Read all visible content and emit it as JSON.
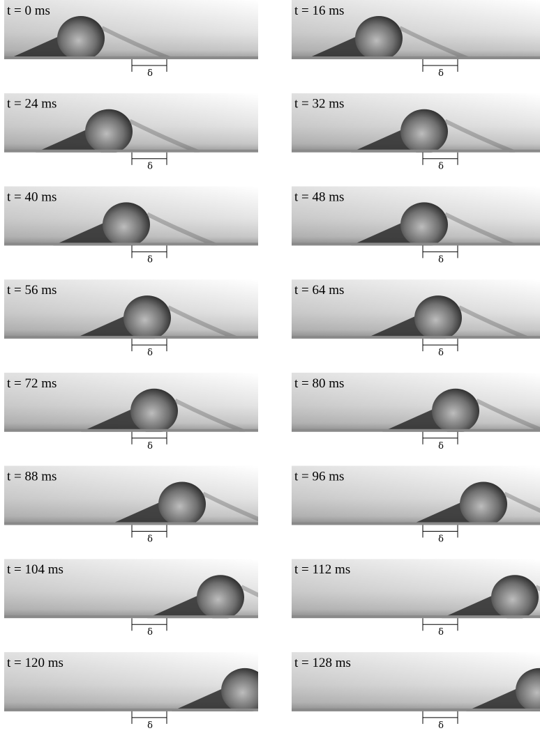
{
  "panels": [
    {
      "label": "t = 0 ms",
      "scale_label": "δ"
    },
    {
      "label": "t = 16 ms",
      "scale_label": "δ"
    },
    {
      "label": "t = 24 ms",
      "scale_label": "δ"
    },
    {
      "label": "t = 32 ms",
      "scale_label": "δ"
    },
    {
      "label": "t = 40 ms",
      "scale_label": "δ"
    },
    {
      "label": "t = 48 ms",
      "scale_label": "δ"
    },
    {
      "label": "t = 56 ms",
      "scale_label": "δ"
    },
    {
      "label": "t = 64 ms",
      "scale_label": "δ"
    },
    {
      "label": "t = 72 ms",
      "scale_label": "δ"
    },
    {
      "label": "t = 80 ms",
      "scale_label": "δ"
    },
    {
      "label": "t = 88 ms",
      "scale_label": "δ"
    },
    {
      "label": "t = 96 ms",
      "scale_label": "δ"
    },
    {
      "label": "t = 104 ms",
      "scale_label": "δ"
    },
    {
      "label": "t = 112 ms",
      "scale_label": "δ"
    },
    {
      "label": "t = 120 ms",
      "scale_label": "δ"
    },
    {
      "label": "t = 128 ms",
      "scale_label": "δ"
    }
  ]
}
